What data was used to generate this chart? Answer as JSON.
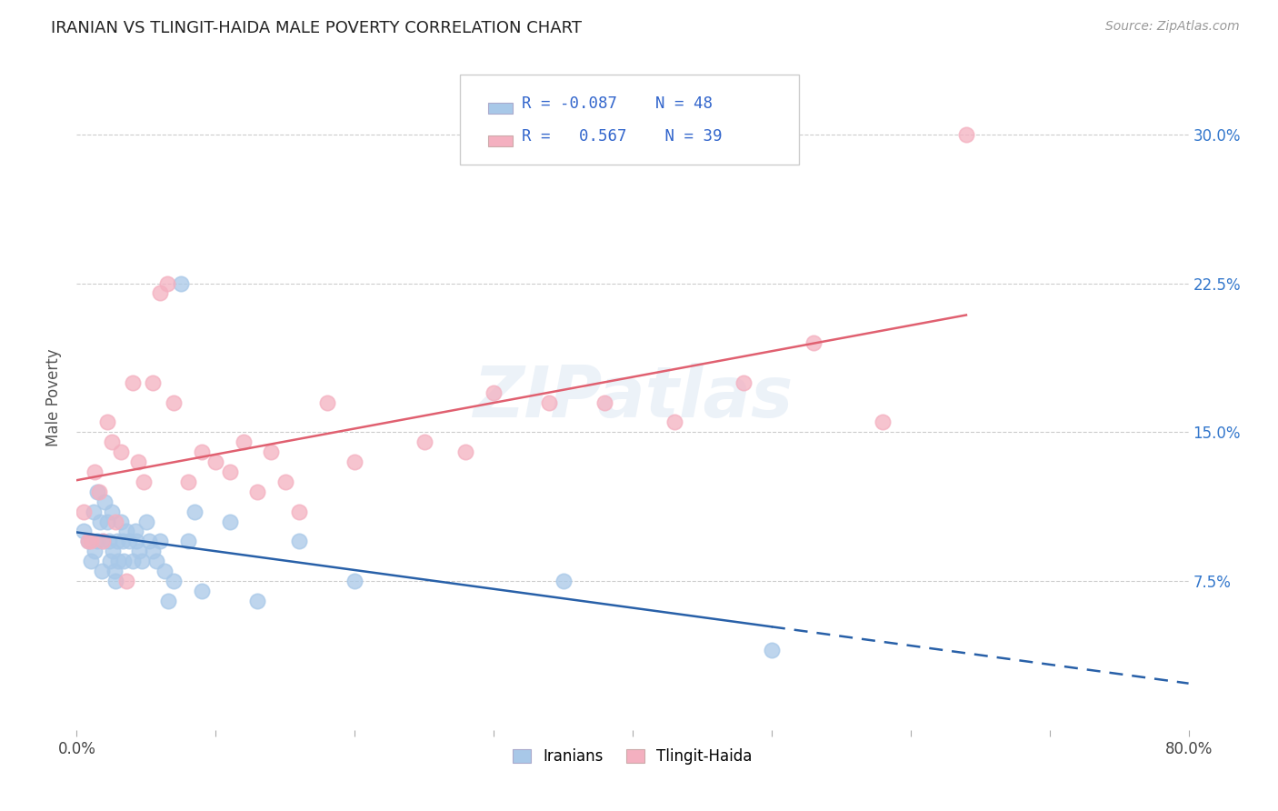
{
  "title": "IRANIAN VS TLINGIT-HAIDA MALE POVERTY CORRELATION CHART",
  "source": "Source: ZipAtlas.com",
  "ylabel": "Male Poverty",
  "ytick_labels": [
    "7.5%",
    "15.0%",
    "22.5%",
    "30.0%"
  ],
  "ytick_values": [
    0.075,
    0.15,
    0.225,
    0.3
  ],
  "xlim": [
    0.0,
    0.8
  ],
  "ylim": [
    0.0,
    0.335
  ],
  "watermark": "ZIPatlas",
  "iranians_R": -0.087,
  "iranians_N": 48,
  "tlingit_R": 0.567,
  "tlingit_N": 39,
  "iranians_color": "#a8c8e8",
  "tlingit_color": "#f4b0c0",
  "iranians_line_color": "#2860a8",
  "tlingit_line_color": "#e06070",
  "legend_label1": "Iranians",
  "legend_label2": "Tlingit-Haida",
  "iranians_x": [
    0.005,
    0.008,
    0.01,
    0.012,
    0.013,
    0.015,
    0.015,
    0.017,
    0.018,
    0.019,
    0.02,
    0.022,
    0.023,
    0.024,
    0.025,
    0.026,
    0.027,
    0.028,
    0.029,
    0.03,
    0.032,
    0.033,
    0.034,
    0.036,
    0.038,
    0.04,
    0.042,
    0.043,
    0.045,
    0.047,
    0.05,
    0.052,
    0.055,
    0.057,
    0.06,
    0.063,
    0.066,
    0.07,
    0.075,
    0.08,
    0.085,
    0.09,
    0.11,
    0.13,
    0.16,
    0.2,
    0.35,
    0.5
  ],
  "iranians_y": [
    0.1,
    0.095,
    0.085,
    0.11,
    0.09,
    0.12,
    0.095,
    0.105,
    0.08,
    0.095,
    0.115,
    0.105,
    0.095,
    0.085,
    0.11,
    0.09,
    0.08,
    0.075,
    0.095,
    0.085,
    0.105,
    0.095,
    0.085,
    0.1,
    0.095,
    0.085,
    0.1,
    0.095,
    0.09,
    0.085,
    0.105,
    0.095,
    0.09,
    0.085,
    0.095,
    0.08,
    0.065,
    0.075,
    0.225,
    0.095,
    0.11,
    0.07,
    0.105,
    0.065,
    0.095,
    0.075,
    0.075,
    0.04
  ],
  "tlingit_x": [
    0.005,
    0.008,
    0.01,
    0.013,
    0.016,
    0.019,
    0.022,
    0.025,
    0.028,
    0.032,
    0.036,
    0.04,
    0.044,
    0.048,
    0.055,
    0.06,
    0.065,
    0.07,
    0.08,
    0.09,
    0.1,
    0.11,
    0.12,
    0.13,
    0.14,
    0.15,
    0.16,
    0.18,
    0.2,
    0.25,
    0.28,
    0.3,
    0.34,
    0.38,
    0.43,
    0.48,
    0.53,
    0.58,
    0.64
  ],
  "tlingit_y": [
    0.11,
    0.095,
    0.095,
    0.13,
    0.12,
    0.095,
    0.155,
    0.145,
    0.105,
    0.14,
    0.075,
    0.175,
    0.135,
    0.125,
    0.175,
    0.22,
    0.225,
    0.165,
    0.125,
    0.14,
    0.135,
    0.13,
    0.145,
    0.12,
    0.14,
    0.125,
    0.11,
    0.165,
    0.135,
    0.145,
    0.14,
    0.17,
    0.165,
    0.165,
    0.155,
    0.175,
    0.195,
    0.155,
    0.3
  ],
  "background_color": "#ffffff",
  "grid_color": "#cccccc"
}
